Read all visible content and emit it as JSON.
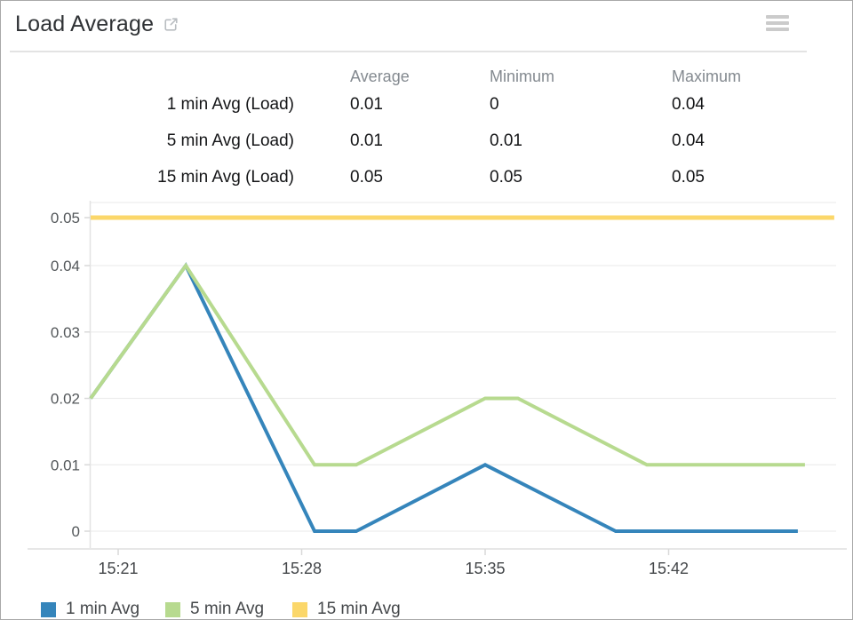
{
  "header": {
    "title": "Load Average",
    "external_link_icon": "external-link",
    "menu_icon": "hamburger-menu"
  },
  "stats_table": {
    "columns": [
      "Average",
      "Minimum",
      "Maximum"
    ],
    "rows": [
      {
        "label": "1 min Avg (Load)",
        "average": "0.01",
        "minimum": "0",
        "maximum": "0.04"
      },
      {
        "label": "5 min Avg (Load)",
        "average": "0.01",
        "minimum": "0.01",
        "maximum": "0.04"
      },
      {
        "label": "15 min Avg (Load)",
        "average": "0.05",
        "minimum": "0.05",
        "maximum": "0.05"
      }
    ]
  },
  "chart_data": {
    "type": "line",
    "x_unit": "minutes after 15:00",
    "ylim": [
      0,
      0.05
    ],
    "grid": true,
    "legend_position": "bottom-left",
    "x_ticks": [
      {
        "t": 21,
        "label": "15:21"
      },
      {
        "t": 28,
        "label": "15:28"
      },
      {
        "t": 35,
        "label": "15:35"
      },
      {
        "t": 42,
        "label": "15:42"
      }
    ],
    "y_ticks": [
      {
        "v": 0,
        "label": "0"
      },
      {
        "v": 0.01,
        "label": "0.01"
      },
      {
        "v": 0.02,
        "label": "0.02"
      },
      {
        "v": 0.03,
        "label": "0.03"
      },
      {
        "v": 0.04,
        "label": "0.04"
      },
      {
        "v": 0.05,
        "label": "0.05"
      }
    ],
    "series": [
      {
        "name": "1 min Avg",
        "color": "#3585bb",
        "points": [
          [
            19.95,
            0.02
          ],
          [
            23.58,
            0.04
          ],
          [
            28.49,
            0
          ],
          [
            30.08,
            0
          ],
          [
            35,
            0.01
          ],
          [
            39.98,
            0
          ],
          [
            46.93,
            0
          ]
        ]
      },
      {
        "name": "5 min Avg",
        "color": "#b7da8f",
        "points": [
          [
            19.95,
            0.02
          ],
          [
            23.58,
            0.04
          ],
          [
            28.49,
            0.01
          ],
          [
            30.08,
            0.01
          ],
          [
            35,
            0.02
          ],
          [
            36.25,
            0.02
          ],
          [
            41.17,
            0.01
          ],
          [
            47.2,
            0.01
          ]
        ]
      },
      {
        "name": "15 min Avg",
        "color": "#fbd76a",
        "points": [
          [
            19.95,
            0.05
          ],
          [
            48.32,
            0.05
          ]
        ]
      }
    ]
  },
  "legend": {
    "items": [
      {
        "label": "1 min Avg",
        "color": "#3585bb"
      },
      {
        "label": "5 min Avg",
        "color": "#b7da8f"
      },
      {
        "label": "15 min Avg",
        "color": "#fbd76a"
      }
    ]
  }
}
